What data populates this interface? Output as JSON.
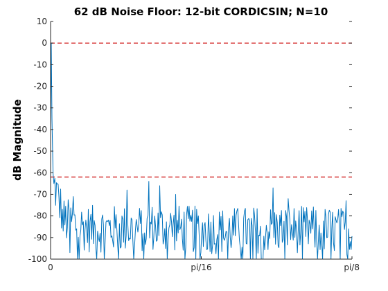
{
  "chart_data": {
    "type": "line",
    "title": "62 dB Noise Floor: 12-bit CORDICSIN; N=10",
    "xlabel": "",
    "ylabel": "dB Magnitude",
    "xlim": [
      0,
      0.39269908
    ],
    "ylim": [
      -100,
      10
    ],
    "x_ticks": [
      {
        "value": 0,
        "label": "0"
      },
      {
        "value": 0.19634954,
        "label": "pi/16"
      },
      {
        "value": 0.39269908,
        "label": "pi/8"
      }
    ],
    "y_ticks": [
      10,
      0,
      -10,
      -20,
      -30,
      -40,
      -50,
      -60,
      -70,
      -80,
      -90,
      -100
    ],
    "grid": false,
    "reference_lines": [
      {
        "y": 0,
        "color": "#cc0000",
        "style": "dashed"
      },
      {
        "y": -62,
        "color": "#cc0000",
        "style": "dashed"
      }
    ],
    "series": [
      {
        "color": "#0072bd",
        "points": 360,
        "peak": {
          "x": 0.0009,
          "y": 0
        },
        "segments": [
          {
            "x_from": 0.0,
            "x_to": 0.015,
            "level_from": -60,
            "level_to": -78
          },
          {
            "x_from": 0.015,
            "x_to": 0.05,
            "level_from": -82,
            "level_to": -86
          },
          {
            "x_from": 0.05,
            "x_to": 0.13,
            "level_from": -86,
            "level_to": -86
          },
          {
            "x_from": 0.13,
            "x_to": 0.22,
            "level_from": -85,
            "level_to": -87
          },
          {
            "x_from": 0.22,
            "x_to": 0.3,
            "level_from": -87,
            "level_to": -86
          },
          {
            "x_from": 0.3,
            "x_to": 0.3927,
            "level_from": -86,
            "level_to": -87
          }
        ],
        "notable_values": [
          {
            "x": 0.004,
            "y": -65
          },
          {
            "x": 0.03,
            "y": -71
          },
          {
            "x": 0.1,
            "y": -68
          },
          {
            "x": 0.128,
            "y": -64
          },
          {
            "x": 0.142,
            "y": -66
          },
          {
            "x": 0.163,
            "y": -70
          },
          {
            "x": 0.29,
            "y": -67
          },
          {
            "x": 0.31,
            "y": -72
          },
          {
            "x": 0.385,
            "y": -73
          },
          {
            "x": 0.025,
            "y": -97
          },
          {
            "x": 0.06,
            "y": -100
          },
          {
            "x": 0.175,
            "y": -100
          },
          {
            "x": 0.26,
            "y": -100
          },
          {
            "x": 0.365,
            "y": -100
          }
        ]
      }
    ]
  }
}
